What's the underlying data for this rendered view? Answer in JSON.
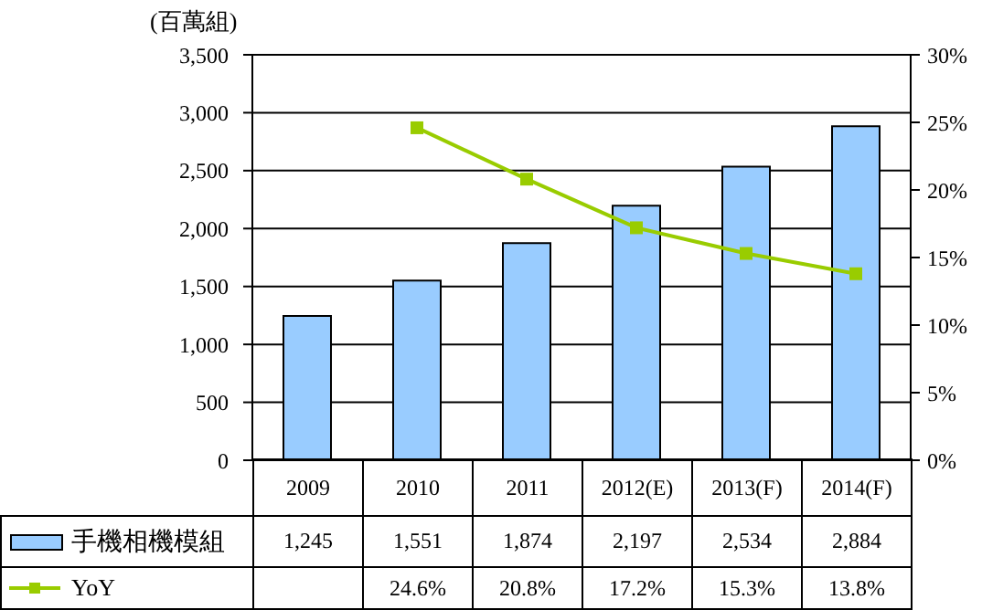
{
  "chart_data": {
    "type": "bar",
    "ylabel": "(百萬組)",
    "categories": [
      "2009",
      "2010",
      "2011",
      "2012(E)",
      "2013(F)",
      "2014(F)"
    ],
    "series": [
      {
        "name": "手機相機模組",
        "color": "#99ccff",
        "values": [
          1245,
          1551,
          1874,
          2197,
          2534,
          2884
        ],
        "value_labels": [
          "1,245",
          "1,551",
          "1,874",
          "2,197",
          "2,534",
          "2,884"
        ]
      },
      {
        "name": "YoY",
        "type": "line",
        "axis": "y2",
        "color": "#99cc00",
        "marker": "square",
        "line_style": "solid",
        "values": [
          null,
          24.6,
          20.8,
          17.2,
          15.3,
          13.8
        ],
        "value_labels": [
          null,
          "24.6%",
          "20.8%",
          "17.2%",
          "15.3%",
          "13.8%"
        ]
      }
    ],
    "ylim": [
      0,
      3500
    ],
    "yticks": [
      {
        "value": 0,
        "label": "0"
      },
      {
        "value": 500,
        "label": "500"
      },
      {
        "value": 1000,
        "label": "1,000"
      },
      {
        "value": 1500,
        "label": "1,500"
      },
      {
        "value": 2000,
        "label": "2,000"
      },
      {
        "value": 2500,
        "label": "2,500"
      },
      {
        "value": 3000,
        "label": "3,000"
      },
      {
        "value": 3500,
        "label": "3,500"
      }
    ],
    "y2lim": [
      0,
      30
    ],
    "y2ticks": [
      {
        "value": 0,
        "label": "0%"
      },
      {
        "value": 5,
        "label": "5%"
      },
      {
        "value": 10,
        "label": "10%"
      },
      {
        "value": 15,
        "label": "15%"
      },
      {
        "value": 20,
        "label": "20%"
      },
      {
        "value": 25,
        "label": "25%"
      },
      {
        "value": 30,
        "label": "30%"
      }
    ],
    "grid": "y",
    "legend": "bottom",
    "data_labels": true
  }
}
